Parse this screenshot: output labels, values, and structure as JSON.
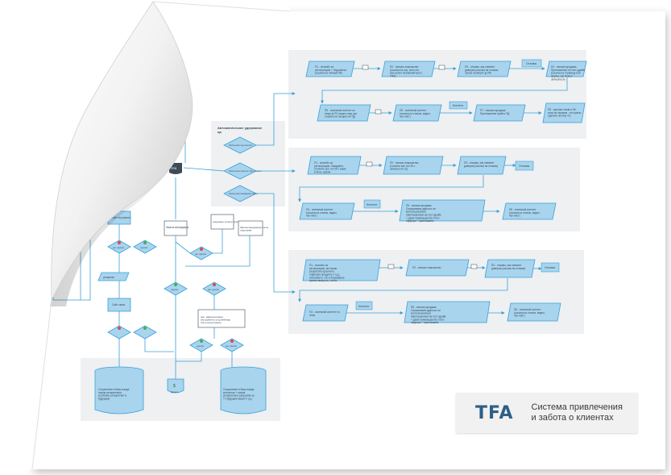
{
  "brand": {
    "logo": "TFA",
    "tagline_line1": "Система привлечения",
    "tagline_line2": "и забота о клиентах"
  },
  "center": {
    "auto_title": "Автоматическое удержание ца",
    "crm": "CRM",
    "mail1": "Рассылка пер.магнит",
    "mail2": "Рассылка пишите ТД + акции",
    "mail3": "Рассылка ожидание базы",
    "site1": "Сайт пер.магнит",
    "site2": "Сайт заказ",
    "retarget1": "ретаргинг",
    "retarget2": "ретаргинг",
    "manager_call": "Звонок менеджера",
    "manager_call2": "Звонок менеджера после подогрева",
    "waiting": "ожидание оплаты программы",
    "exit_note": "Попытка выхода пер.магнит на ТД (при попытке закрыть сайт)",
    "yes": "сделка",
    "no": "нет сделки",
    "deal_note": "доп. маркетинговые инструменты (тур вебинар или консультация)",
    "db1": "Сохранение в базу в виде писем ретаргетинга (глубокие ретаргетинг в будущем)",
    "db2": "Сохранение в базу в виде контактов + писем ретаргетинга (загрузим на +т будущем акции и т.д.)",
    "money": "Деньги"
  },
  "panel1": {
    "p1": "П1 - спасибо за регистрацию + Лид.магнит (ссылка на личный ЛК)",
    "p2": "П2 - письмо знакомство (ссылка на соц. сети,что уже успел познакомиться с ТФА)",
    "p3": "П3 - отзывы, как элемент доверия (ссылка на отзывы, лучше проверят Д.ЗП)",
    "p3_tag": "Отзывы",
    "p4": "П4 - письмо-продажа. Приглашение на тест-драйв (ссылка на страницу или форму, где можно записаться)",
    "p5": "П5 - полезный контент из темы (в РС можно еще раз позвать на лекцию на ТД)",
    "p6": "П6 - полезный контент (ссылка на статью, видео, чек-лист)",
    "p6_tag": "Контент",
    "p7": "П7 - письмо-продажа. Приглашение пройти ТД",
    "p8": "П8 - просим отзыв в ЛК, если не сможем - это нужно сделать потому что"
  },
  "panel2": {
    "p1": "П1 - спасибо за регистрацию. Ожидайте, уточнить все ли ОК с вами в блок, время",
    "p2": "П2 - письмо знакомство, уточнить все ли ОК с записью на ТД",
    "p3": "П3 - отзывы, как элемент доверия (ссылка на отзывы)",
    "p3_tag": "Отзывы",
    "p4": "П4 - полезный контент (ссылка на статью, видео, чек-лист)",
    "p4_tag": "Контент",
    "p5": "П5 - письмо-продажа. Спрашиваем удалось ли воспользоваться приглашением на тест-драйв + даем приемущества этого оффера + приглашаем записаться по телефону",
    "p6": "П6 - полезный контент (ссылка на статью, видео, чек-лист)"
  },
  "panel3": {
    "p1": "П1 - спасибо за регистрацию, вот ваши результаты (расчеты, подборка продукта и т.д.). Напомнить, что в ближайшее время свяжутся, чтобы оказать консультацию подробнее",
    "p2": "П2 - письмо знакомство",
    "p3": "П3 - отзывы, как элемент доверия (ссылка на отзывы)",
    "p3_tag": "Отзывы",
    "p4": "П4 - полезный контент по теме",
    "p4_tag": "Контент",
    "p5": "П5 - письмо-продажа. Спрашиваем удалось ли воспользоваться приглашением на тест-драйв + даем приемущества этого оффера + приглашаем записаться по телефону",
    "p6": "П6 - полезный контент (ссылка на статью, видео, чек-лист)"
  }
}
